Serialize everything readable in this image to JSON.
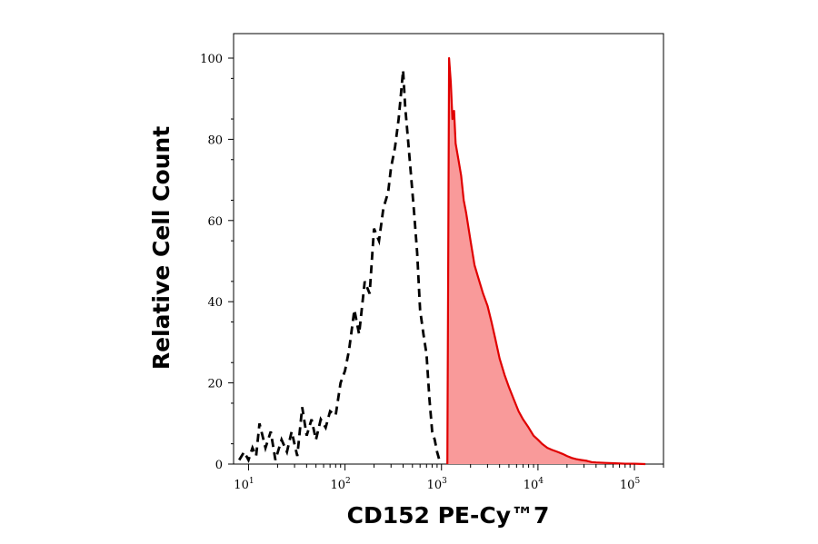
{
  "chart_data": {
    "type": "area",
    "xscale": "log",
    "xlabel": "CD152 PE-Cy™7",
    "ylabel": "Relative Cell Count",
    "xlim": [
      7,
      200000
    ],
    "ylim": [
      0,
      100
    ],
    "x_ticks": [
      {
        "base": "10",
        "exp": "1",
        "value": 10
      },
      {
        "base": "10",
        "exp": "2",
        "value": 100
      },
      {
        "base": "10",
        "exp": "3",
        "value": 1000
      },
      {
        "base": "10",
        "exp": "4",
        "value": 10000
      },
      {
        "base": "10",
        "exp": "5",
        "value": 100000
      }
    ],
    "y_ticks": [
      "0",
      "20",
      "40",
      "60",
      "80",
      "100"
    ],
    "grid": false,
    "legend": "none",
    "series": [
      {
        "style": "dashed",
        "color": "#000000",
        "x": [
          8,
          9,
          10,
          11,
          12,
          13,
          15,
          17,
          19,
          22,
          25,
          28,
          32,
          36,
          40,
          45,
          50,
          56,
          63,
          70,
          80,
          90,
          100,
          110,
          125,
          140,
          160,
          180,
          200,
          225,
          250,
          280,
          300,
          330,
          360,
          380,
          400,
          420,
          450,
          480,
          520,
          560,
          600,
          650,
          700,
          750,
          800,
          850,
          900,
          950
        ],
        "y": [
          1,
          3,
          1,
          4,
          2,
          10,
          4,
          8,
          1,
          6,
          3,
          8,
          2,
          14,
          7,
          11,
          6,
          11,
          9,
          13,
          12,
          20,
          23,
          28,
          38,
          32,
          45,
          42,
          58,
          55,
          63,
          67,
          73,
          78,
          85,
          91,
          97,
          88,
          80,
          72,
          62,
          52,
          38,
          32,
          27,
          16,
          8,
          6,
          3,
          1
        ]
      },
      {
        "style": "filled",
        "color": "#e00000",
        "fill": "#f99a9a",
        "x": [
          1150,
          1200,
          1250,
          1300,
          1350,
          1400,
          1500,
          1600,
          1700,
          1800,
          2000,
          2200,
          2400,
          2700,
          3000,
          3300,
          3600,
          4000,
          4500,
          5000,
          5600,
          6300,
          7000,
          8000,
          9000,
          10000,
          11000,
          12500,
          14000,
          16000,
          18000,
          20000,
          22500,
          25000,
          28000,
          32000,
          36000,
          40000,
          50000,
          63000,
          80000,
          100000,
          130000
        ],
        "y": [
          0,
          100,
          94,
          85,
          87,
          79,
          75,
          71,
          65,
          62,
          55,
          49,
          46,
          42,
          39,
          35,
          31,
          26,
          22,
          19,
          16,
          13,
          11,
          9,
          7,
          6,
          5,
          4,
          3.5,
          3,
          2.5,
          2,
          1.5,
          1.2,
          1,
          0.8,
          0.5,
          0.4,
          0.3,
          0.2,
          0.1,
          0.1,
          0
        ]
      }
    ]
  }
}
